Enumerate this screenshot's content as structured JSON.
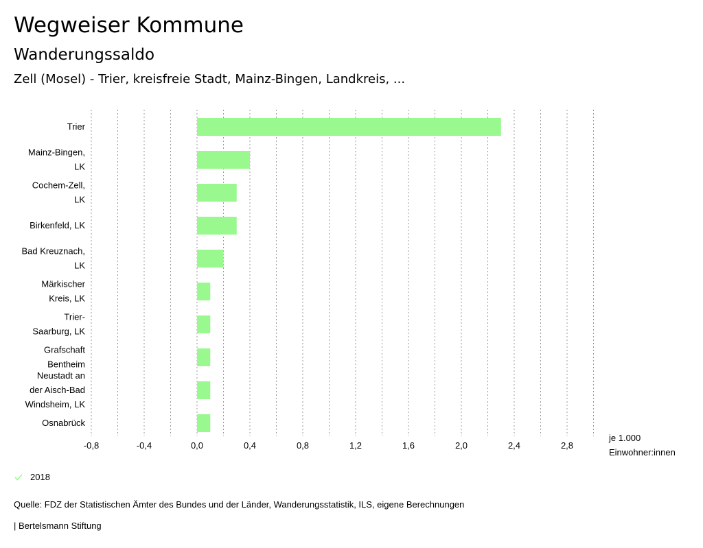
{
  "page": {
    "title": "Wegweiser Kommune",
    "subtitle": "Wanderungssaldo",
    "comparison": "Zell (Mosel) - Trier, kreisfreie Stadt, Mainz-Bingen, Landkreis, ..."
  },
  "chart_data": {
    "type": "bar",
    "orientation": "horizontal",
    "title": "Wanderungssaldo",
    "categories": [
      [
        "Trier"
      ],
      [
        "Mainz-Bingen,",
        "LK"
      ],
      [
        "Cochem-Zell,",
        "LK"
      ],
      [
        "Birkenfeld, LK"
      ],
      [
        "Bad Kreuznach,",
        "LK"
      ],
      [
        "Märkischer",
        "Kreis, LK"
      ],
      [
        "Trier-",
        "Saarburg, LK"
      ],
      [
        "Grafschaft",
        "Bentheim"
      ],
      [
        "Neustadt an",
        "der Aisch-Bad",
        "Windsheim, LK"
      ],
      [
        "Osnabrück"
      ]
    ],
    "series": [
      {
        "name": "2018",
        "color": "#99f98f",
        "values": [
          2.3,
          0.4,
          0.3,
          0.3,
          0.2,
          0.1,
          0.1,
          0.1,
          0.1,
          0.1
        ]
      }
    ],
    "xlim": [
      -0.8,
      3.0
    ],
    "gridlines": [
      -0.8,
      -0.6,
      -0.4,
      -0.2,
      0.0,
      0.2,
      0.4,
      0.6,
      0.8,
      1.0,
      1.2,
      1.4,
      1.6,
      1.8,
      2.0,
      2.2,
      2.4,
      2.6,
      2.8,
      3.0
    ],
    "ticks": [
      -0.8,
      -0.4,
      0.0,
      0.4,
      0.8,
      1.2,
      1.6,
      2.0,
      2.4,
      2.8
    ],
    "tick_labels": [
      "-0,8",
      "-0,4",
      "0,0",
      "0,4",
      "0,8",
      "1,2",
      "1,6",
      "2,0",
      "2,4",
      "2,8"
    ],
    "unit_label": [
      "je 1.000",
      "Einwohner:innen"
    ],
    "grid": true,
    "legend_position": "bottom-left"
  },
  "legend": {
    "label": "2018",
    "color": "#99f98f"
  },
  "footer": {
    "source": "Quelle: FDZ der Statistischen Ämter des Bundes und der Länder, Wanderungsstatistik, ILS, eigene Berechnungen",
    "publisher": "| Bertelsmann Stiftung"
  },
  "colors": {
    "bar": "#99f98f",
    "grid": "#999999",
    "text": "#000000"
  }
}
